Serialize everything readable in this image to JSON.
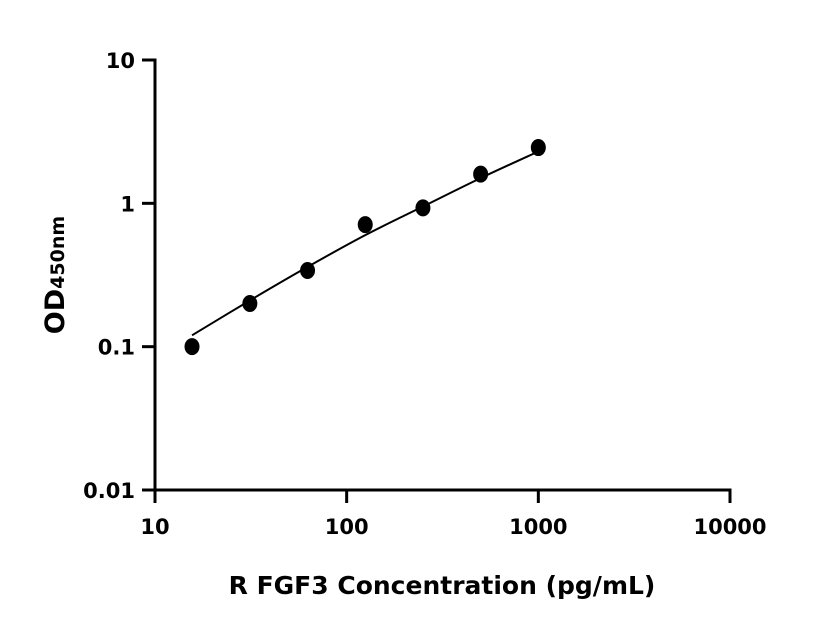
{
  "chart_data": {
    "type": "scatter",
    "title": "",
    "xlabel": "R FGF3 Concentration (pg/mL)",
    "ylabel_main": "OD",
    "ylabel_sub": "450nm",
    "xscale": "log",
    "yscale": "log",
    "xlim": [
      10,
      10000
    ],
    "ylim": [
      0.01,
      10
    ],
    "x_ticks": [
      "10",
      "100",
      "1000",
      "10000"
    ],
    "y_ticks": [
      "0.01",
      "0.1",
      "1",
      "10"
    ],
    "grid": false,
    "legend": "none",
    "points": {
      "x": [
        15.6,
        31.25,
        62.5,
        125,
        250,
        500,
        1000
      ],
      "y": [
        0.1,
        0.2,
        0.34,
        0.71,
        0.93,
        1.6,
        2.45
      ]
    },
    "fit_curve": {
      "x": [
        15.6,
        31.25,
        62.5,
        125,
        250,
        500,
        1000
      ],
      "y": [
        0.12,
        0.21,
        0.36,
        0.6,
        0.95,
        1.5,
        2.3
      ]
    },
    "colors": {
      "marker": "#000000",
      "line": "#000000",
      "axis": "#000000"
    }
  }
}
